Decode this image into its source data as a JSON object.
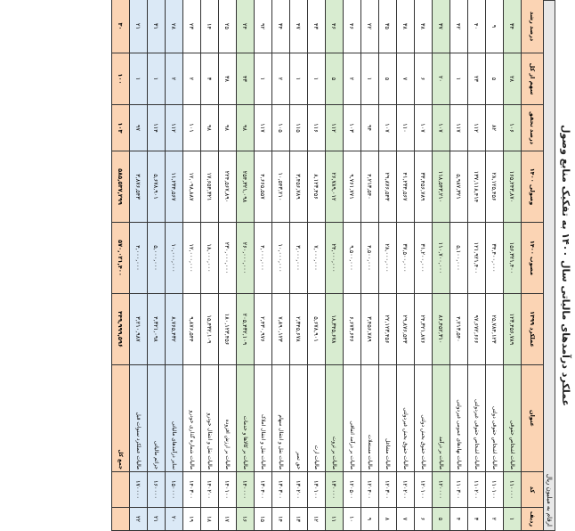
{
  "title": "عملکرد درآمدهای مالیاتی سال ۱۴۰۰ به تفکیک منابع وصول",
  "subtitle": "ارقام به میلیون ریال",
  "headers": [
    "ردیف",
    "کد",
    "عنوان",
    "عملکرد ۱۳۹۹",
    "مصوب ۱۴۰۰",
    "وصولی ۱۴۰۰",
    "درصد تحقق",
    "سهم از کل",
    "درصد رشد"
  ],
  "rows": [
    [
      "۱",
      "۱۱۰۰۰۰",
      "مالیات اشخاص حقوقی",
      "۱۲۳,۴۵۶,۷۸۹",
      "۱۵۶,۳۲۱,۴۰۰",
      "۱۶۵,۲۴۳,۸۷۰",
      "۱۰۶",
      "۲۸",
      "۳۴"
    ],
    [
      "۲",
      "۱۱۰۱۰۰",
      "مالیات اشخاص حقوقی دولتی",
      "۲۵,۷۸۴,۱۲۳",
      "۳۴,۴۰۰,۰۰۰",
      "۲۸,۱۲۵,۴۵۶",
      "۸۲",
      "۵",
      "۹"
    ],
    [
      "۳",
      "۱۱۰۲۰۰",
      "مالیات اشخاص حقوقی غیردولتی",
      "۹۷,۶۷۲,۶۶۶",
      "۱۲۱,۹۲۱,۴۰۰",
      "۱۳۷,۱۱۸,۴۱۴",
      "۱۱۲",
      "۲۳",
      "۴۰"
    ],
    [
      "۴",
      "۱۱۰۳۰۰",
      "مالیات نهادهای عمومی غیردولتی",
      "۴,۲۱۳,۵۴۰",
      "۵,۱۰۰,۰۰۰",
      "۵,۹۸۷,۳۲۱",
      "۱۱۷",
      "۱",
      "۴۲"
    ],
    [
      "۵",
      "۱۲۰۰۰۰",
      "مالیات بر درآمد",
      "۸۶,۴۵۲,۳۱۰",
      "۱۱۰,۷۰۰,۰۰۰",
      "۱۱۸,۵۴۳,۲۱۰",
      "۱۰۷",
      "۲۰",
      "۳۷"
    ],
    [
      "۶",
      "۱۲۰۱۰۰",
      "مالیات حقوق بخش دولتی",
      "۲۴,۳۲۱,۸۷۶",
      "۳۱,۲۰۰,۰۰۰",
      "۳۳,۴۵۶,۷۸۹",
      "۱۰۷",
      "۶",
      "۳۸"
    ],
    [
      "۷",
      "۱۲۰۲۰۰",
      "مالیات حقوق بخش غیردولتی",
      "۲۹,۸۷۶,۵۴۳",
      "۳۷,۵۰۰,۰۰۰",
      "۴۱,۲۳۴,۵۶۷",
      "۱۱۰",
      "۷",
      "۳۸"
    ],
    [
      "۸",
      "۱۲۰۳۰۰",
      "مالیات مشاغل",
      "۲۲,۱۲۳,۴۵۶",
      "۲۸,۰۰۰,۰۰۰",
      "۲۹,۸۷۶,۵۴۳",
      "۱۰۷",
      "۵",
      "۳۵"
    ],
    [
      "۹",
      "۱۲۰۴۰۰",
      "مالیات مستغلات",
      "۳,۴۵۶,۷۸۹",
      "۴,۵۰۰,۰۰۰",
      "۴,۲۱۳,۵۴۰",
      "۹۴",
      "۱",
      "۲۲"
    ],
    [
      "۱۰",
      "۱۲۰۵۰۰",
      "مالیات بر درآمد اتفاقی",
      "۶,۶۷۳,۶۴۶",
      "۹,۵۰۰,۰۰۰",
      "۹,۷۶۱,۷۷۱",
      "۱۰۳",
      "۲",
      "۴۶"
    ],
    [
      "۱۱",
      "۱۳۰۰۰۰",
      "مالیات بر ثروت",
      "۱۸,۳۴۵,۶۷۸",
      "۲۴,۰۰۰,۰۰۰",
      "۲۶,۷۸۹,۰۱۲",
      "۱۱۲",
      "۵",
      "۴۶"
    ],
    [
      "۱۲",
      "۱۳۰۱۰۰",
      "مالیات ارث",
      "۵,۶۷۸,۹۰۱",
      "۷,۰۰۰,۰۰۰",
      "۸,۱۲۳,۴۵۶",
      "۱۱۶",
      "۱",
      "۴۳"
    ],
    [
      "۱۳",
      "۱۳۰۲۰۰",
      "حق تمبر",
      "۲,۳۴۵,۶۷۸",
      "۳,۰۰۰,۰۰۰",
      "۳,۴۵۶,۷۸۹",
      "۱۱۵",
      "۱",
      "۴۷"
    ],
    [
      "۱۴",
      "۱۳۰۳۰۰",
      "مالیات نقل و انتقال سهام",
      "۷,۸۹۰,۱۲۳",
      "۱۰,۰۰۰,۰۰۰",
      "۱۰,۵۴۳,۲۱۰",
      "۱۰۵",
      "۲",
      "۳۴"
    ],
    [
      "۱۵",
      "۱۳۰۴۰۰",
      "مالیات نقل و انتقال املاک",
      "۲,۴۳۰,۹۷۶",
      "۴,۰۰۰,۰۰۰",
      "۴,۶۶۵,۵۵۷",
      "۱۱۷",
      "۱",
      "۹۲"
    ],
    [
      "۱۶",
      "۱۴۰۰۰۰",
      "مالیات بر کالاها و خدمات",
      "۲۰۵,۴۳۲,۱۰۹",
      "۲۶۰,۰۰۰,۰۰۰",
      "۲۵۴,۳۲۱,۰۹۸",
      "۹۸",
      "۴۳",
      "۲۴"
    ],
    [
      "۱۷",
      "۱۴۰۱۰۰",
      "مالیات بر ارزش افزوده",
      "۱۸۰,۱۲۳,۴۵۶",
      "۲۳۰,۰۰۰,۰۰۰",
      "۲۲۴,۵۶۷,۸۹۰",
      "۹۸",
      "۳۸",
      "۲۵"
    ],
    [
      "۱۸",
      "۱۴۰۲۰۰",
      "مالیات نقل و انتقال خودرو",
      "۱۵,۴۳۲,۱۰۹",
      "۱۸,۰۰۰,۰۰۰",
      "۱۷,۶۵۴,۳۲۱",
      "۹۸",
      "۳",
      "۱۴"
    ],
    [
      "۱۹",
      "۱۴۰۳۰۰",
      "مالیات شماره گذاری خودرو",
      "۹,۸۷۶,۵۴۴",
      "۱۲,۰۰۰,۰۰۰",
      "۱۲,۰۹۸,۸۸۷",
      "۱۰۱",
      "۲",
      "۲۳"
    ],
    [
      "۲۰",
      "۱۵۰۰۰۰",
      "سایر درآمدهای مالیاتی",
      "۸,۷۶۵,۴۳۲",
      "۱۰,۰۰۰,۰۰۰",
      "۱۱,۲۳۴,۵۶۷",
      "۱۱۲",
      "۲",
      "۲۸"
    ],
    [
      "۲۱",
      "۱۶۰۰۰۰",
      "جرائم مالیاتی",
      "۴,۳۲۱,۰۹۸",
      "۵,۰۰۰,۰۰۰",
      "۵,۶۷۸,۹۰۱",
      "۱۱۴",
      "۱",
      "۳۱"
    ],
    [
      "۲۲",
      "۱۷۰۰۰۰",
      "مالیات عملکرد سنوات قبل",
      "۳,۲۱۰,۹۸۷",
      "۴,۰۰۰,۰۰۰",
      "۳,۸۷۶,۵۴۳",
      "۹۷",
      "۱",
      "۲۱"
    ],
    [
      "",
      "",
      "جمع کل",
      "۴۴۹,۹۹۹,۵۹۶",
      "۵۷۰,۰۲۱,۴۰۰",
      "۵۸۵,۵۳۷,۲۹۹",
      "۱۰۳",
      "۱۰۰",
      "۳۰"
    ]
  ]
}
